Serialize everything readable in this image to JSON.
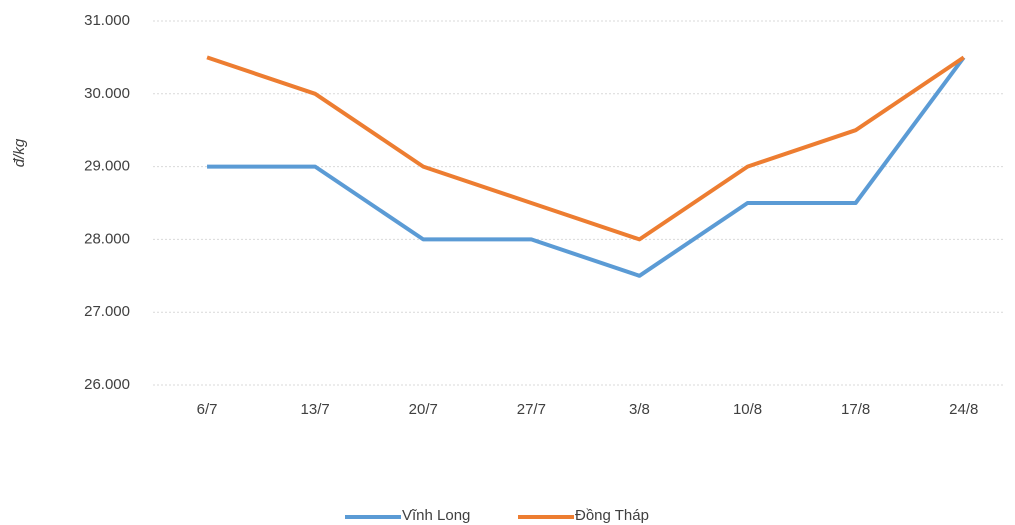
{
  "chart_data": {
    "type": "line",
    "y_label": "đ/kg",
    "categories": [
      "6/7",
      "13/7",
      "20/7",
      "27/7",
      "3/8",
      "10/8",
      "17/8",
      "24/8"
    ],
    "series": [
      {
        "name": "Vĩnh Long",
        "color": "#5b9bd5",
        "values": [
          29000,
          29000,
          28000,
          28000,
          27500,
          28500,
          28500,
          30500
        ]
      },
      {
        "name": "Đồng Tháp",
        "color": "#ed7d31",
        "values": [
          30500,
          30000,
          29000,
          28500,
          28000,
          29000,
          29500,
          30500
        ]
      }
    ],
    "ylim": [
      26000,
      31000
    ],
    "yticks": [
      {
        "value": 26000,
        "label": "26.000"
      },
      {
        "value": 27000,
        "label": "27.000"
      },
      {
        "value": 28000,
        "label": "28.000"
      },
      {
        "value": 29000,
        "label": "29.000"
      },
      {
        "value": 30000,
        "label": "30.000"
      },
      {
        "value": 31000,
        "label": "31.000"
      }
    ],
    "grid": true,
    "legend": "bottom"
  }
}
